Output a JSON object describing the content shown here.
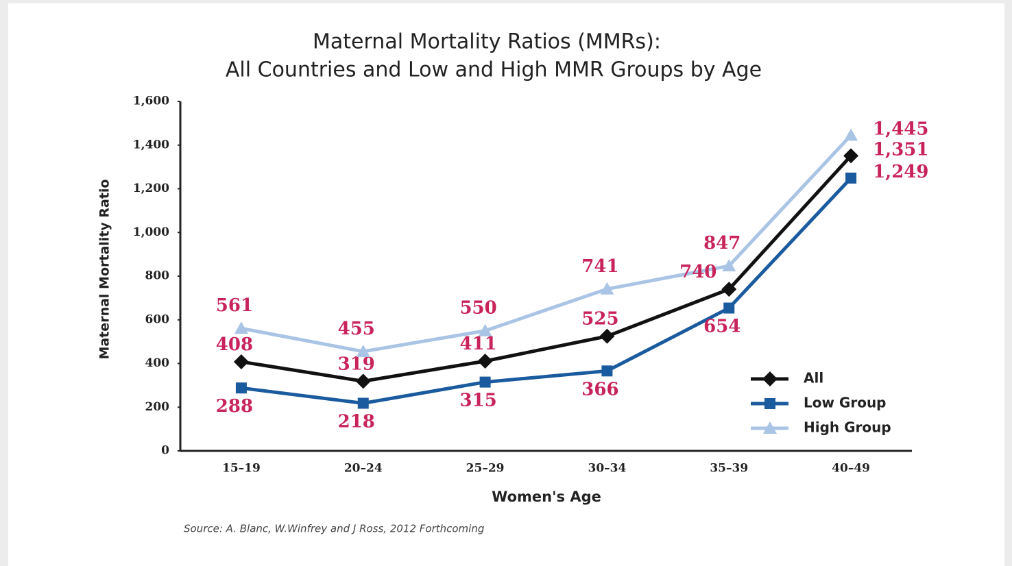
{
  "chart_data": {
    "type": "line",
    "title": "Maternal Mortality Ratios (MMRs):",
    "subtitle": "All Countries and Low and High MMR Groups by Age",
    "x_label": "Women's Age",
    "y_label": "Maternal Mortality Ratio",
    "source": "Source: A. Blanc, W.Winfrey and J Ross, 2012 Forthcoming",
    "categories": [
      "15–19",
      "20–24",
      "25–29",
      "30–34",
      "35–39",
      "40–49"
    ],
    "series": [
      {
        "name": "All",
        "color": "#111111",
        "marker": "diamond",
        "values": [
          408,
          319,
          411,
          525,
          740,
          1351
        ],
        "value_labels": [
          "408",
          "319",
          "411",
          "525",
          "740",
          "1,351"
        ]
      },
      {
        "name": "Low Group",
        "color": "#1a5a9e",
        "marker": "square",
        "values": [
          288,
          218,
          315,
          366,
          654,
          1249
        ],
        "value_labels": [
          "288",
          "218",
          "315",
          "366",
          "654",
          "1,249"
        ]
      },
      {
        "name": "High Group",
        "color": "#a9c4e4",
        "marker": "triangle",
        "values": [
          561,
          455,
          550,
          741,
          847,
          1445
        ],
        "value_labels": [
          "561",
          "455",
          "550",
          "741",
          "847",
          "1,445"
        ]
      }
    ],
    "ylim": [
      0,
      1600
    ],
    "yticks": [
      0,
      200,
      400,
      600,
      800,
      {
        "value": 1000,
        "label": "1,000"
      },
      {
        "value": 1200,
        "label": "1,200"
      },
      {
        "value": 1400,
        "label": "1,400"
      },
      {
        "value": 1600,
        "label": "1,600"
      }
    ],
    "grid": false,
    "legend": "lower right",
    "label_color": "#c8245a"
  }
}
